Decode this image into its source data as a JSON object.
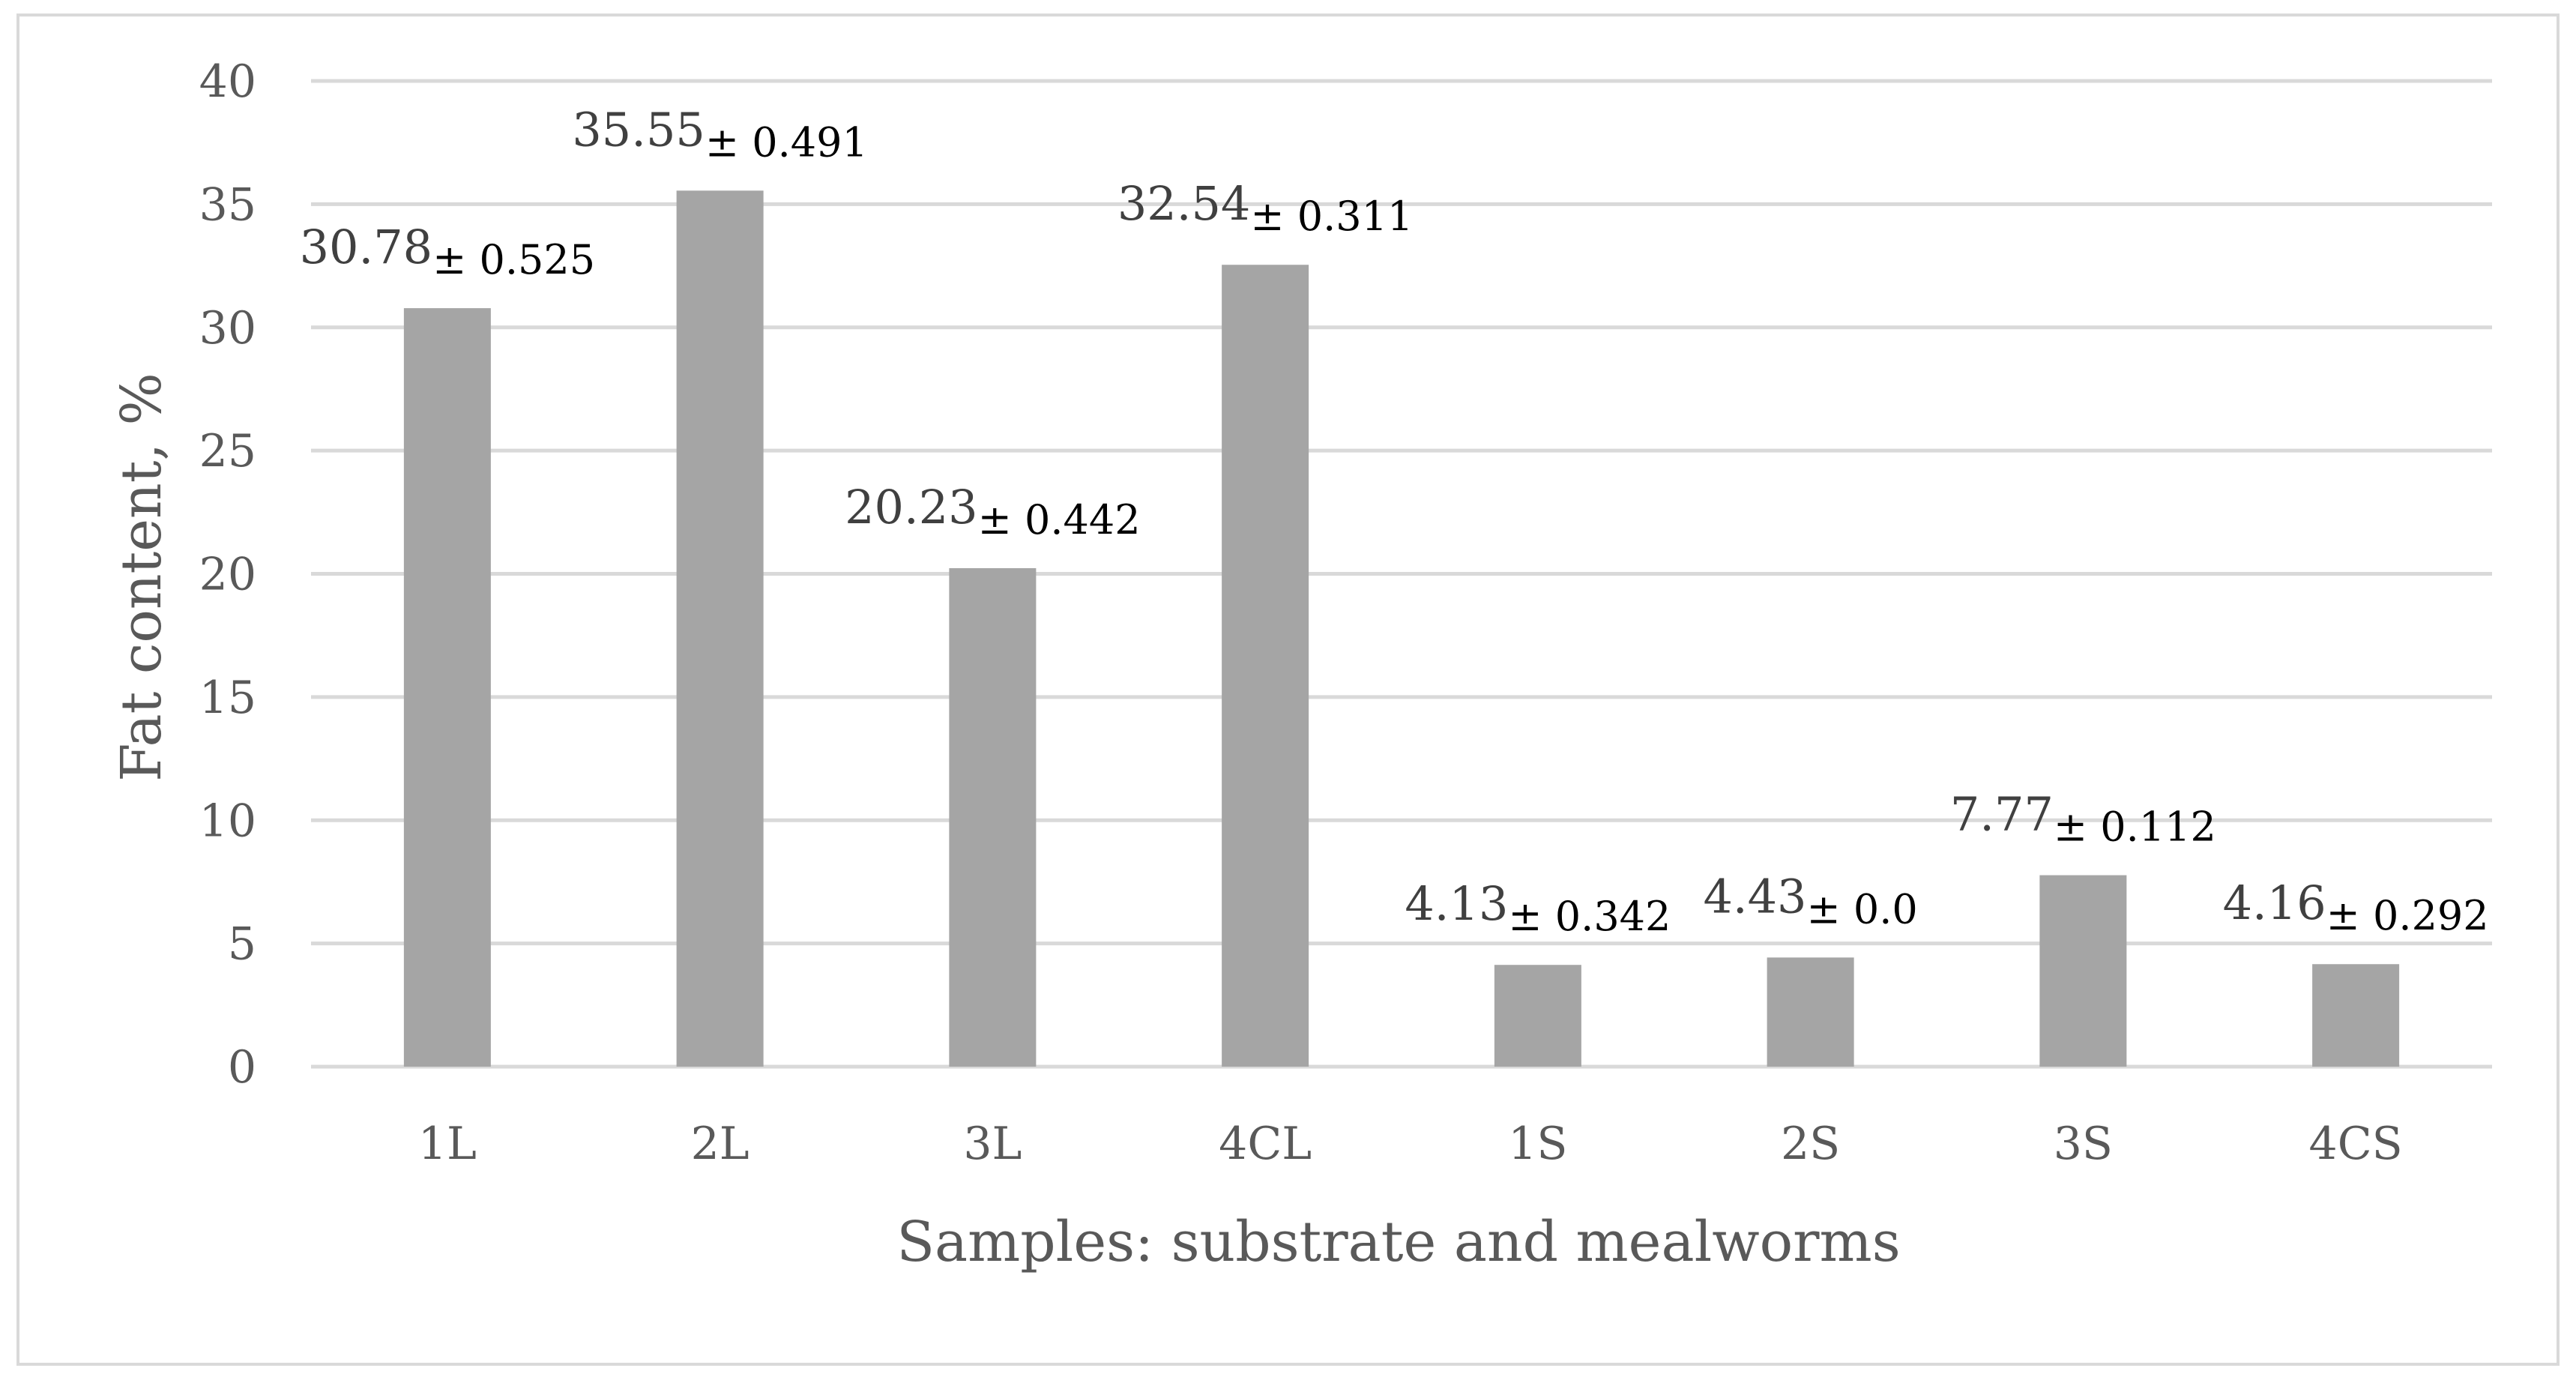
{
  "chart_data": {
    "type": "bar",
    "categories": [
      "1L",
      "2L",
      "3L",
      "4CL",
      "1S",
      "2S",
      "3S",
      "4CS"
    ],
    "values": [
      30.78,
      35.55,
      20.23,
      32.54,
      4.13,
      4.43,
      7.77,
      4.16
    ],
    "data_labels": [
      "30.78",
      "35.55",
      "20.23",
      "32.54",
      "4.13",
      "4.43",
      "7.77",
      "4.16"
    ],
    "error_labels": [
      "± 0.525",
      "± 0.491",
      "± 0.442",
      "± 0.311",
      "± 0.342",
      "± 0.0",
      "± 0.112",
      "± 0.292"
    ],
    "title": "",
    "xlabel": "Samples: substrate and mealworms",
    "ylabel": "Fat content, %",
    "ylim": [
      0,
      40
    ],
    "yticks": [
      0,
      5,
      10,
      15,
      20,
      25,
      30,
      35,
      40
    ],
    "grid": true,
    "legend": "none",
    "colors": {
      "bar": "#a5a5a5",
      "grid": "#d9d9d9",
      "axis_text": "#595959",
      "border": "#d9d9d9"
    }
  }
}
